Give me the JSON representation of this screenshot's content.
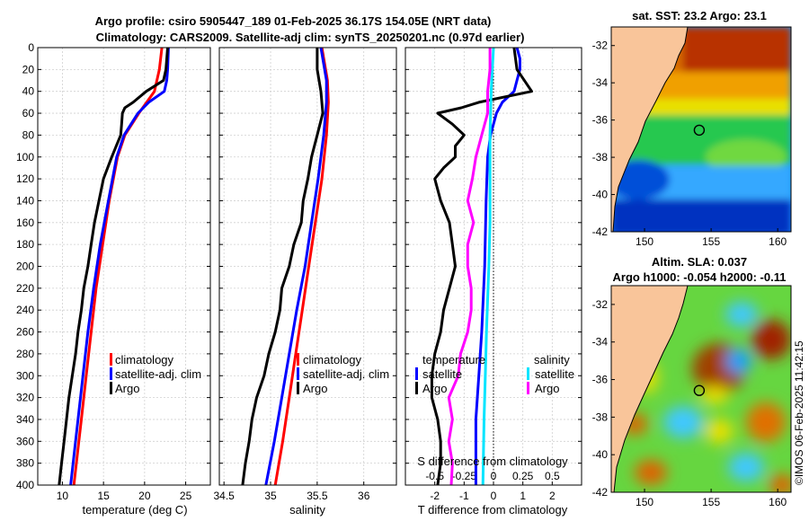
{
  "title": {
    "line1": "Argo profile: csiro 5905447_189 01-Feb-2025 36.17S 154.05E (NRT data)",
    "line2": "Climatology: CARS2009. Satellite-adj clim: synTS_20250201.nc (0.97d earlier)"
  },
  "side_label": "©IMOS 06-Feb-2025 11:42:15",
  "colors": {
    "climatology": "#ff0000",
    "satellite": "#0000ff",
    "argo": "#000000",
    "sal_satellite": "#00e5ff",
    "sal_argo": "#ff00ff",
    "land": "#f9c59a",
    "map_ocean_warm": "#cc4400"
  },
  "legend": {
    "climatology": "climatology",
    "satellite": "satellite-adj. clim",
    "argo": "Argo",
    "temperature": "temperature",
    "salinity": "salinity",
    "satellite_short": "satellite"
  },
  "chart_data": [
    {
      "type": "line",
      "name": "temperature-profile",
      "xlabel": "temperature (deg C)",
      "ylabel": "",
      "xlim": [
        7,
        28
      ],
      "ylim": [
        0,
        400
      ],
      "y_reversed": true,
      "grid": true,
      "xticks": [
        "10",
        "15",
        "20",
        "25"
      ],
      "xtick_values": [
        10,
        15,
        20,
        25
      ],
      "yticks": [
        "0",
        "20",
        "40",
        "60",
        "80",
        "100",
        "120",
        "140",
        "160",
        "180",
        "200",
        "220",
        "240",
        "260",
        "280",
        "300",
        "320",
        "340",
        "360",
        "380",
        "400"
      ],
      "ytick_values": [
        0,
        20,
        40,
        60,
        80,
        100,
        120,
        140,
        160,
        180,
        200,
        220,
        240,
        260,
        280,
        300,
        320,
        340,
        360,
        380,
        400
      ],
      "legend_pos": "right-middle",
      "series": [
        {
          "name": "climatology",
          "color": "#ff0000",
          "depth": [
            0,
            20,
            40,
            60,
            80,
            100,
            140,
            180,
            220,
            260,
            300,
            340,
            400
          ],
          "values": [
            22.1,
            21.8,
            21.2,
            19.3,
            17.6,
            16.7,
            15.7,
            14.9,
            14.1,
            13.5,
            12.9,
            12.3,
            11.4
          ]
        },
        {
          "name": "satellite-adj. clim",
          "color": "#0000ff",
          "depth": [
            0,
            20,
            30,
            40,
            50,
            60,
            80,
            100,
            140,
            180,
            220,
            260,
            300,
            340,
            400
          ],
          "values": [
            22.9,
            22.8,
            22.7,
            22.4,
            20.5,
            19.2,
            17.5,
            16.6,
            15.6,
            14.6,
            13.8,
            13.1,
            12.5,
            11.9,
            11.0
          ]
        },
        {
          "name": "Argo",
          "color": "#000000",
          "depth": [
            0,
            20,
            30,
            40,
            50,
            55,
            60,
            70,
            80,
            100,
            120,
            160,
            180,
            200,
            220,
            240,
            260,
            280,
            300,
            320,
            340,
            360,
            380,
            400
          ],
          "values": [
            22.8,
            22.6,
            22.3,
            20.2,
            18.6,
            17.6,
            17.3,
            17.2,
            17.1,
            16.0,
            15.0,
            13.9,
            13.5,
            13.1,
            12.6,
            12.3,
            11.9,
            11.6,
            11.2,
            10.8,
            10.5,
            10.2,
            9.9,
            9.6
          ]
        }
      ]
    },
    {
      "type": "line",
      "name": "salinity-profile",
      "xlabel": "salinity",
      "ylabel": "",
      "xlim": [
        34.45,
        36.35
      ],
      "ylim": [
        0,
        400
      ],
      "y_reversed": true,
      "grid": true,
      "xticks": [
        "34.5",
        "35",
        "35.5",
        "36"
      ],
      "xtick_values": [
        34.5,
        35,
        35.5,
        36
      ],
      "legend_pos": "right-middle",
      "series": [
        {
          "name": "climatology",
          "color": "#ff0000",
          "depth": [
            0,
            30,
            50,
            80,
            120,
            160,
            200,
            240,
            280,
            320,
            360,
            400
          ],
          "values": [
            35.55,
            35.61,
            35.62,
            35.6,
            35.55,
            35.48,
            35.41,
            35.34,
            35.27,
            35.2,
            35.13,
            35.05
          ]
        },
        {
          "name": "satellite-adj. clim",
          "color": "#0000ff",
          "depth": [
            0,
            30,
            50,
            80,
            120,
            160,
            200,
            240,
            280,
            320,
            360,
            400
          ],
          "values": [
            35.54,
            35.6,
            35.6,
            35.57,
            35.51,
            35.44,
            35.37,
            35.28,
            35.2,
            35.12,
            35.04,
            34.95
          ]
        },
        {
          "name": "Argo",
          "color": "#000000",
          "depth": [
            0,
            20,
            40,
            60,
            80,
            100,
            120,
            140,
            160,
            180,
            200,
            220,
            240,
            260,
            280,
            300,
            320,
            340,
            360,
            380,
            400
          ],
          "values": [
            35.5,
            35.5,
            35.54,
            35.56,
            35.5,
            35.44,
            35.4,
            35.35,
            35.33,
            35.25,
            35.2,
            35.12,
            35.1,
            35.05,
            34.98,
            34.93,
            34.85,
            34.8,
            34.77,
            34.73,
            34.7
          ]
        }
      ]
    },
    {
      "type": "line",
      "name": "difference-profile",
      "xlabel": "T difference from climatology",
      "ylabel": "",
      "xlim": [
        -3,
        3
      ],
      "ylim": [
        0,
        400
      ],
      "y_reversed": true,
      "grid": true,
      "xticks": [
        "-2",
        "-1",
        "0",
        "1",
        "2"
      ],
      "xtick_values": [
        -2,
        -1,
        0,
        1,
        2
      ],
      "x2label": "S difference from climatology",
      "x2ticks": [
        "-0.5",
        "-0.25",
        "0",
        "0.25",
        "0.5"
      ],
      "x2tick_values": [
        -0.5,
        -0.25,
        0,
        0.25,
        0.5
      ],
      "x2lim": [
        -0.75,
        0.75
      ],
      "zero_line": true,
      "legend_pos": "bottom-right",
      "series": [
        {
          "name": "satellite (T)",
          "color": "#0000ff",
          "depth": [
            0,
            10,
            20,
            30,
            40,
            50,
            60,
            80,
            100,
            140,
            200,
            260,
            300,
            340,
            400
          ],
          "values": [
            0.8,
            0.9,
            0.9,
            0.8,
            0.7,
            0.3,
            0.1,
            -0.1,
            -0.2,
            -0.25,
            -0.3,
            -0.4,
            -0.5,
            -0.6,
            -0.6
          ]
        },
        {
          "name": "Argo (T)",
          "color": "#000000",
          "depth": [
            0,
            20,
            40,
            50,
            55,
            60,
            70,
            80,
            90,
            100,
            110,
            120,
            140,
            160,
            180,
            200,
            220,
            240,
            260,
            280,
            300,
            320,
            340,
            360,
            380,
            400
          ],
          "values": [
            0.7,
            0.8,
            1.3,
            -0.5,
            -1.1,
            -1.9,
            -1.4,
            -1.0,
            -1.3,
            -1.3,
            -1.7,
            -2.0,
            -1.8,
            -1.5,
            -1.4,
            -1.3,
            -1.5,
            -1.7,
            -1.8,
            -2.0,
            -2.1,
            -2.1,
            -1.9,
            -1.8,
            -1.8,
            -1.9
          ]
        },
        {
          "name": "satellite (S)",
          "color": "#00e5ff",
          "depth": [
            0,
            40,
            80,
            120,
            160,
            200,
            260,
            300,
            340,
            400
          ],
          "values": [
            0.0,
            -0.02,
            -0.03,
            -0.03,
            -0.03,
            -0.04,
            -0.06,
            -0.07,
            -0.08,
            -0.09
          ]
        },
        {
          "name": "Argo (S)",
          "color": "#ff00ff",
          "depth": [
            0,
            20,
            40,
            60,
            80,
            100,
            120,
            140,
            160,
            180,
            200,
            220,
            240,
            260,
            280,
            300,
            320,
            340,
            360,
            380,
            400
          ],
          "values": [
            -0.03,
            -0.03,
            -0.05,
            -0.05,
            -0.1,
            -0.15,
            -0.18,
            -0.22,
            -0.17,
            -0.22,
            -0.22,
            -0.19,
            -0.19,
            -0.22,
            -0.28,
            -0.3,
            -0.38,
            -0.35,
            -0.38,
            -0.35,
            -0.36
          ]
        }
      ]
    },
    {
      "type": "heatmap",
      "name": "sst-map",
      "title": "sat. SST: 23.2 Argo: 23.1",
      "xlim": [
        147.5,
        161
      ],
      "ylim": [
        -42,
        -31
      ],
      "xticks": [
        "150",
        "155",
        "160"
      ],
      "xtick_values": [
        150,
        155,
        160
      ],
      "yticks": [
        "-32",
        "-34",
        "-36",
        "-38",
        "-40",
        "-42"
      ],
      "ytick_values": [
        -32,
        -34,
        -36,
        -38,
        -40,
        -42
      ],
      "marker": {
        "lon": 154.05,
        "lat": -36.17
      }
    },
    {
      "type": "heatmap",
      "name": "sla-map",
      "title": "Altim. SLA: 0.037",
      "subtitle": "Argo h1000: -0.054 h2000: -0.11",
      "xlim": [
        147.5,
        161
      ],
      "ylim": [
        -42,
        -31
      ],
      "xticks": [
        "150",
        "155",
        "160"
      ],
      "xtick_values": [
        150,
        155,
        160
      ],
      "yticks": [
        "-32",
        "-34",
        "-36",
        "-38",
        "-40",
        "-42"
      ],
      "ytick_values": [
        -32,
        -34,
        -36,
        -38,
        -40,
        -42
      ],
      "marker": {
        "lon": 154.05,
        "lat": -36.17
      }
    }
  ]
}
